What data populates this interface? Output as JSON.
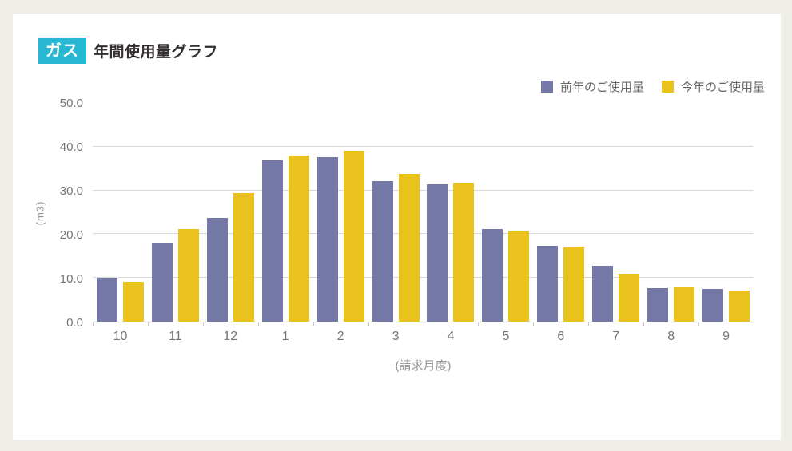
{
  "header": {
    "badge": "ガス",
    "title": "年間使用量グラフ"
  },
  "legend": [
    {
      "label": "前年のご使用量",
      "color": "#7478a6",
      "slug": "prev-year"
    },
    {
      "label": "今年のご使用量",
      "color": "#eac21d",
      "slug": "current-year"
    }
  ],
  "chart_data": {
    "type": "bar",
    "title": "ガス 年間使用量グラフ",
    "categories": [
      "10",
      "11",
      "12",
      "1",
      "2",
      "3",
      "4",
      "5",
      "6",
      "7",
      "8",
      "9"
    ],
    "series": [
      {
        "name": "前年のご使用量",
        "slug": "prev-year",
        "color": "#7478a6",
        "values": [
          10.0,
          18.0,
          23.8,
          36.8,
          37.6,
          32.2,
          31.4,
          21.1,
          17.4,
          12.7,
          7.6,
          7.5
        ]
      },
      {
        "name": "今年のご使用量",
        "slug": "current-year",
        "color": "#eac21d",
        "values": [
          9.1,
          21.1,
          29.4,
          37.9,
          39.0,
          33.8,
          31.7,
          20.6,
          17.1,
          10.9,
          7.8,
          7.1
        ]
      }
    ],
    "xlabel": "(請求月度)",
    "ylabel": "(m3)",
    "ylim": [
      0,
      50
    ],
    "yticks": [
      0,
      10,
      20,
      30,
      40,
      50
    ],
    "ytick_labels": [
      "0.0",
      "10.0",
      "20.0",
      "30.0",
      "40.0",
      "50.0"
    ],
    "gridlines": [
      10,
      20,
      30,
      40
    ],
    "grid": true,
    "legend_position": "top-right"
  },
  "colors": {
    "background": "#f0eee8",
    "card": "#ffffff",
    "badge": "#29b8d4",
    "grid": "#d9d9d9",
    "tick_text": "#757575",
    "axis_title_text": "#949494",
    "title_text": "#332f2e"
  }
}
